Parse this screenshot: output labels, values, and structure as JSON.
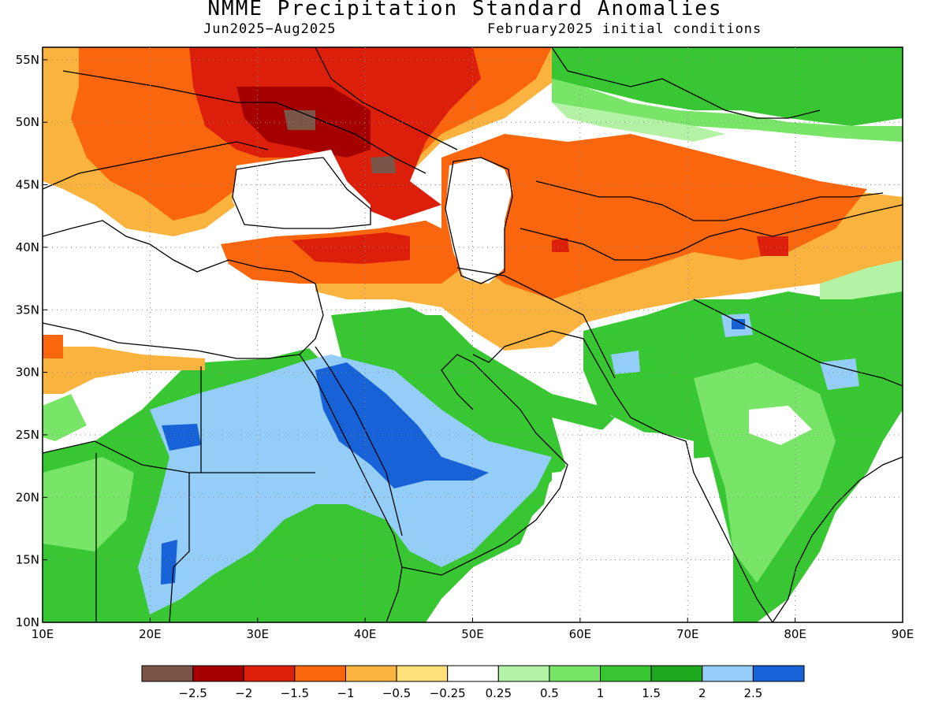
{
  "title": "NMME Precipitation Standard Anomalies",
  "subtitle_left": "Jun2025−Aug2025",
  "subtitle_right": "February2025 initial conditions",
  "map": {
    "region": {
      "lon_min": 10,
      "lon_max": 90,
      "lat_min": 10,
      "lat_max": 56
    },
    "lon_ticks": [
      "10E",
      "20E",
      "30E",
      "40E",
      "50E",
      "60E",
      "70E",
      "80E",
      "90E"
    ],
    "lat_ticks": [
      "10N",
      "15N",
      "20N",
      "25N",
      "30N",
      "35N",
      "40N",
      "45N",
      "50N",
      "55N"
    ],
    "anomaly_regions": [
      {
        "name": "eastern-europe-russia",
        "level": -2
      },
      {
        "name": "ukraine-core",
        "level": -2.5
      },
      {
        "name": "turkey-caucasus",
        "level": -1.5
      },
      {
        "name": "central-asia",
        "level": -1
      },
      {
        "name": "iran-afghanistan",
        "level": -0.5
      },
      {
        "name": "west-siberia",
        "level": 1
      },
      {
        "name": "arabia-red-sea",
        "level": 2.5
      },
      {
        "name": "sudan-sahel",
        "level": 1.5
      },
      {
        "name": "india-pakistan",
        "level": 1
      }
    ]
  },
  "colorbar": {
    "colors": [
      "#7a5548",
      "#a50000",
      "#dc1f0b",
      "#f9660d",
      "#fbb33f",
      "#fde07a",
      "#ffffff",
      "#b4f3a6",
      "#78e568",
      "#38c732",
      "#1ea81e",
      "#94cdf7",
      "#1662d6"
    ],
    "labels": [
      "−2.5",
      "−2",
      "−1.5",
      "−1",
      "−0.5",
      "−0.25",
      "0.25",
      "0.5",
      "1",
      "1.5",
      "2",
      "2.5"
    ]
  }
}
